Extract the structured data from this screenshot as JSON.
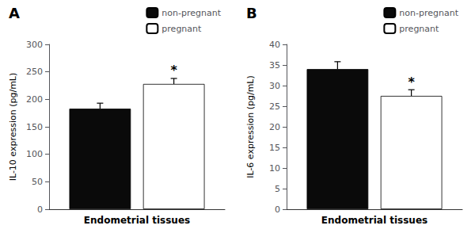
{
  "chart_data": [
    {
      "type": "bar",
      "title": "A",
      "ylabel": "IL-10 expression (pg/mL)",
      "categories": [
        "Endometrial tissues"
      ],
      "series": [
        {
          "name": "non-pregnant",
          "color": "#0a0a0a",
          "values": [
            183
          ],
          "errors": [
            10
          ]
        },
        {
          "name": "pregnant",
          "color": "#ffffff",
          "values": [
            228
          ],
          "errors": [
            10
          ]
        }
      ],
      "ylim": [
        0,
        300
      ],
      "yticks": [
        0,
        50,
        100,
        150,
        200,
        250,
        300
      ],
      "grid": false,
      "legend": "upper right",
      "annotations": [
        {
          "text": "*",
          "series": "pregnant"
        }
      ]
    },
    {
      "type": "bar",
      "title": "B",
      "ylabel": "IL-6 expression (pg/mL)",
      "categories": [
        "Endometrial tissues"
      ],
      "series": [
        {
          "name": "non-pregnant",
          "color": "#0a0a0a",
          "values": [
            34
          ],
          "errors": [
            1.8
          ]
        },
        {
          "name": "pregnant",
          "color": "#ffffff",
          "values": [
            27.5
          ],
          "errors": [
            1.5
          ]
        }
      ],
      "ylim": [
        0,
        40
      ],
      "yticks": [
        0,
        5,
        10,
        15,
        20,
        25,
        30,
        35,
        40
      ],
      "grid": false,
      "legend": "upper right",
      "annotations": [
        {
          "text": "*",
          "series": "pregnant"
        }
      ]
    }
  ]
}
